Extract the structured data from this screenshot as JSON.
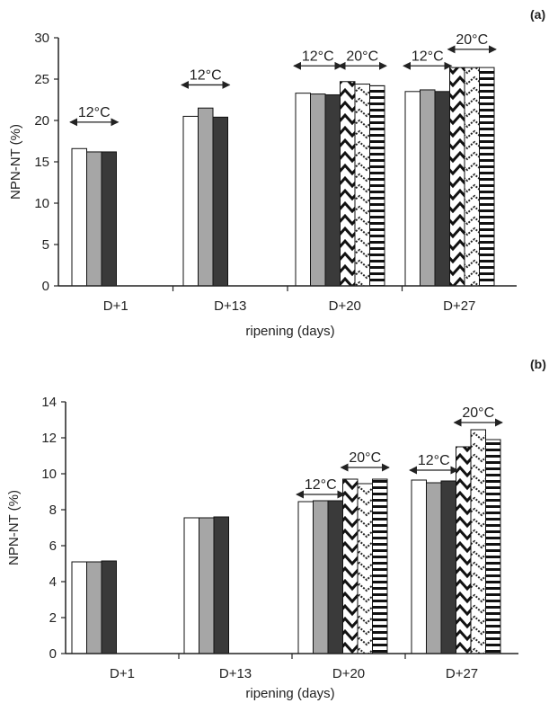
{
  "chart_data": [
    {
      "type": "bar",
      "panel_label": "(a)",
      "categories": [
        "D+1",
        "D+13",
        "D+20",
        "D+27"
      ],
      "xlabel": "ripening (days)",
      "ylabel": "NPN-NT (%)",
      "ylim": [
        0,
        30
      ],
      "yticks": [
        "0",
        "5",
        "10",
        "15",
        "20",
        "25",
        "30"
      ],
      "grid": false,
      "series": [
        {
          "pattern": "white",
          "values": [
            16.6,
            20.5,
            23.3,
            23.5
          ]
        },
        {
          "pattern": "gray",
          "values": [
            16.2,
            21.5,
            23.2,
            23.7
          ]
        },
        {
          "pattern": "dark",
          "values": [
            16.2,
            20.4,
            23.1,
            23.5
          ]
        },
        {
          "pattern": "chevron-heavy",
          "values": [
            null,
            null,
            24.7,
            26.4
          ]
        },
        {
          "pattern": "chevron-light",
          "values": [
            null,
            null,
            24.4,
            26.4
          ]
        },
        {
          "pattern": "horizontal-stripes",
          "values": [
            null,
            null,
            24.2,
            26.4
          ]
        }
      ],
      "annotations": [
        {
          "text": "12°C",
          "category": "D+1",
          "bars": [
            0,
            2
          ],
          "y": 19.8
        },
        {
          "text": "12°C",
          "category": "D+13",
          "bars": [
            0,
            2
          ],
          "y": 24.3
        },
        {
          "text": "12°C",
          "category": "D+20",
          "bars": [
            0,
            2
          ],
          "y": 26.6
        },
        {
          "text": "20°C",
          "category": "D+20",
          "bars": [
            3,
            5
          ],
          "y": 26.6
        },
        {
          "text": "12°C",
          "category": "D+27",
          "bars": [
            0,
            2
          ],
          "y": 26.6
        },
        {
          "text": "20°C",
          "category": "D+27",
          "bars": [
            3,
            5
          ],
          "y": 28.6
        }
      ]
    },
    {
      "type": "bar",
      "panel_label": "(b)",
      "categories": [
        "D+1",
        "D+13",
        "D+20",
        "D+27"
      ],
      "xlabel": "ripening (days)",
      "ylabel": "NPN-NT (%)",
      "ylim": [
        0,
        14
      ],
      "yticks": [
        "0",
        "2",
        "4",
        "6",
        "8",
        "10",
        "12",
        "14"
      ],
      "grid": false,
      "series": [
        {
          "pattern": "white",
          "values": [
            5.1,
            7.55,
            8.45,
            9.65
          ]
        },
        {
          "pattern": "gray",
          "values": [
            5.1,
            7.55,
            8.5,
            9.5
          ]
        },
        {
          "pattern": "dark",
          "values": [
            5.15,
            7.6,
            8.5,
            9.6
          ]
        },
        {
          "pattern": "chevron-heavy",
          "values": [
            null,
            null,
            9.7,
            11.5
          ]
        },
        {
          "pattern": "chevron-light",
          "values": [
            null,
            null,
            9.45,
            12.45
          ]
        },
        {
          "pattern": "horizontal-stripes",
          "values": [
            null,
            null,
            9.7,
            11.9
          ]
        }
      ],
      "annotations": [
        {
          "text": "12°C",
          "category": "D+20",
          "bars": [
            0,
            2
          ],
          "y": 8.85
        },
        {
          "text": "20°C",
          "category": "D+20",
          "bars": [
            3,
            5
          ],
          "y": 10.35
        },
        {
          "text": "12°C",
          "category": "D+27",
          "bars": [
            0,
            2
          ],
          "y": 10.2
        },
        {
          "text": "20°C",
          "category": "D+27",
          "bars": [
            3,
            5
          ],
          "y": 12.85
        }
      ]
    }
  ]
}
